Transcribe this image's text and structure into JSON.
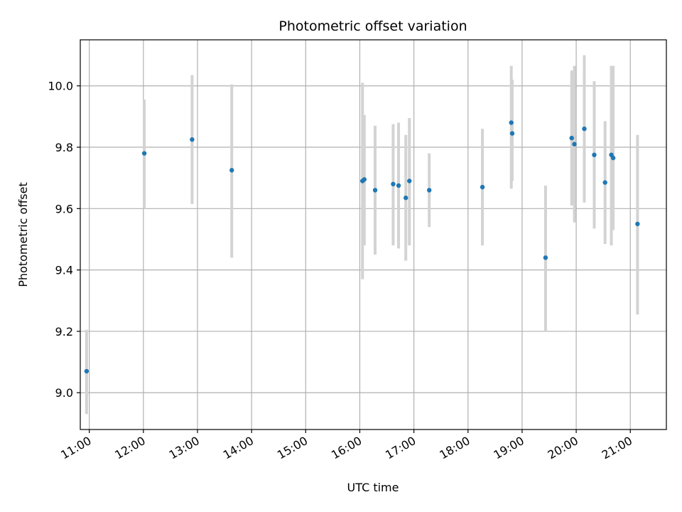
{
  "chart_data": {
    "type": "scatter",
    "title": "Photometric offset variation",
    "xlabel": "UTC time",
    "ylabel": "Photometric offset",
    "grid": true,
    "xlim": [
      "10:50",
      "21:40"
    ],
    "ylim": [
      8.88,
      10.15
    ],
    "x_ticks": [
      "11:00",
      "12:00",
      "13:00",
      "14:00",
      "15:00",
      "16:00",
      "17:00",
      "18:00",
      "19:00",
      "20:00",
      "21:00"
    ],
    "y_ticks": [
      9.0,
      9.2,
      9.4,
      9.6,
      9.8,
      10.0
    ],
    "colors": {
      "point": "#1f77b4",
      "errorbar": "#d3d3d3",
      "grid": "#b0b0b0"
    },
    "series": [
      {
        "x": [
          "10:57",
          "12:01",
          "12:54",
          "13:38",
          "16:03",
          "16:05",
          "16:17",
          "16:37",
          "16:43",
          "16:51",
          "16:55",
          "17:17",
          "18:16",
          "18:48",
          "18:49",
          "19:26",
          "19:55",
          "19:58",
          "20:09",
          "20:20",
          "20:32",
          "20:39",
          "20:41",
          "21:08"
        ],
        "y": [
          9.07,
          9.78,
          9.825,
          9.725,
          9.69,
          9.695,
          9.66,
          9.68,
          9.675,
          9.635,
          9.69,
          9.66,
          9.67,
          9.88,
          9.845,
          9.44,
          9.83,
          9.81,
          9.86,
          9.775,
          9.685,
          9.775,
          9.765,
          9.55
        ],
        "yerr_low": [
          8.93,
          9.6,
          9.615,
          9.44,
          9.37,
          9.48,
          9.45,
          9.48,
          9.47,
          9.43,
          9.48,
          9.54,
          9.48,
          9.665,
          9.69,
          9.2,
          9.61,
          9.555,
          9.62,
          9.535,
          9.485,
          9.48,
          9.53,
          9.255
        ],
        "yerr_high": [
          9.205,
          9.955,
          10.035,
          10.005,
          10.01,
          9.905,
          9.87,
          9.875,
          9.88,
          9.84,
          9.895,
          9.78,
          9.86,
          10.065,
          10.02,
          9.675,
          10.05,
          10.065,
          10.1,
          10.015,
          9.885,
          10.065,
          10.065,
          9.84
        ]
      }
    ]
  }
}
